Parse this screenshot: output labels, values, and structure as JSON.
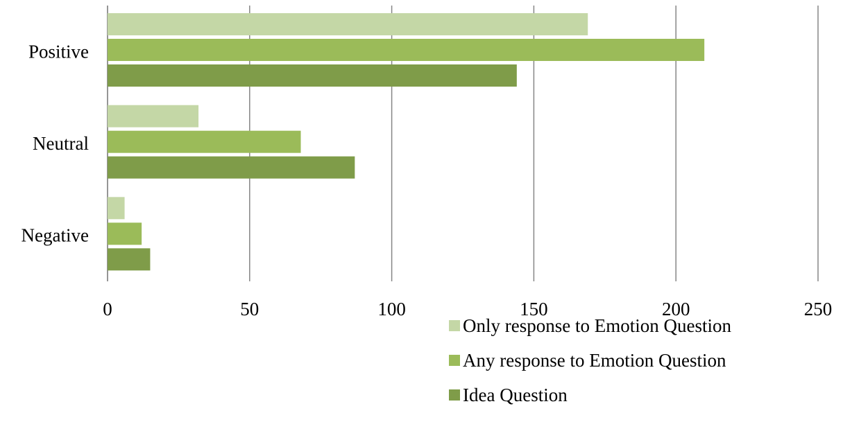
{
  "chart_data": {
    "type": "bar",
    "orientation": "horizontal",
    "title": "",
    "xlabel": "",
    "ylabel": "",
    "xlim": [
      0,
      250
    ],
    "x_ticks": [
      "0",
      "50",
      "100",
      "150",
      "200",
      "250"
    ],
    "categories": [
      "Positive",
      "Neutral",
      "Negative"
    ],
    "grid": true,
    "legend_position": "bottom-right",
    "series": [
      {
        "name": "Only response to Emotion Question",
        "color": "#c4d7a6",
        "values": [
          169,
          32,
          6
        ]
      },
      {
        "name": "Any response to Emotion Question",
        "color": "#9bbb59",
        "values": [
          210,
          68,
          12
        ]
      },
      {
        "name": "Idea Question",
        "color": "#7f9c49",
        "values": [
          144,
          87,
          15
        ]
      }
    ]
  }
}
